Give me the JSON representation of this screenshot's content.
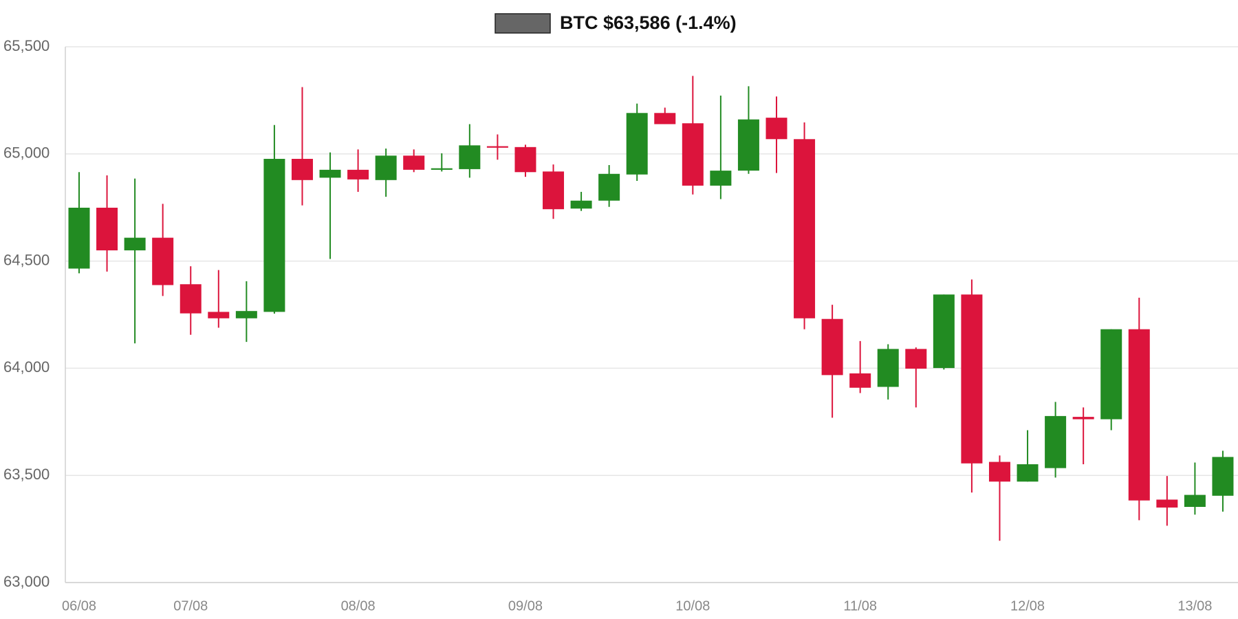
{
  "chart_data": {
    "type": "candlestick",
    "categories": [
      "06/08",
      null,
      null,
      null,
      "07/08",
      null,
      null,
      null,
      null,
      null,
      "08/08",
      null,
      null,
      null,
      null,
      null,
      "09/08",
      null,
      null,
      null,
      null,
      null,
      "10/08",
      null,
      null,
      null,
      null,
      null,
      "11/08",
      null,
      null,
      null,
      null,
      null,
      "12/08",
      null,
      null,
      null,
      null,
      null,
      "13/08",
      null
    ],
    "series": [
      {
        "name": "BTC $63,586 (-1.4%)",
        "color": "#666666",
        "open": [
          64465,
          64749,
          64550,
          64609,
          64392,
          64263,
          64233,
          64263,
          64977,
          64889,
          64926,
          64878,
          64992,
          64926,
          64929,
          65036,
          65032,
          64918,
          64745,
          64782,
          64904,
          65191,
          65143,
          64852,
          64922,
          65169,
          65069,
          64230,
          63976,
          63913,
          64090,
          64001,
          64344,
          63563,
          63471,
          63534,
          63773,
          63762,
          64182,
          63387,
          63353,
          63405
        ],
        "high": [
          64915,
          64900,
          64885,
          64767,
          64476,
          64458,
          64406,
          65135,
          65312,
          65007,
          65021,
          65025,
          65021,
          65003,
          65139,
          65091,
          65043,
          64951,
          64823,
          64948,
          65235,
          65216,
          65364,
          65272,
          65316,
          65268,
          65147,
          64296,
          64127,
          64112,
          64097,
          64344,
          64414,
          63593,
          63711,
          63843,
          63817,
          64182,
          64329,
          63497,
          63560,
          63615
        ],
        "low": [
          64443,
          64451,
          64116,
          64337,
          64156,
          64189,
          64123,
          64255,
          64760,
          64510,
          64823,
          64800,
          64915,
          64918,
          64889,
          64973,
          64893,
          64697,
          64734,
          64753,
          64874,
          65139,
          64811,
          64789,
          64907,
          64911,
          64182,
          63769,
          63884,
          63854,
          63817,
          63994,
          63420,
          63195,
          63471,
          63490,
          63552,
          63711,
          63291,
          63265,
          63317,
          63331
        ],
        "close": [
          64749,
          64550,
          64609,
          64388,
          64256,
          64233,
          64267,
          64977,
          64878,
          64926,
          64881,
          64992,
          64926,
          64933,
          65040,
          65029,
          64915,
          64742,
          64782,
          64907,
          65191,
          65139,
          64852,
          64922,
          65161,
          65069,
          64233,
          63968,
          63909,
          64090,
          63998,
          64344,
          63556,
          63471,
          63552,
          63777,
          63762,
          64182,
          63383,
          63350,
          63409,
          63586
        ]
      }
    ],
    "up_color": "#228b22",
    "down_color": "#dc143c",
    "ylim": [
      63000,
      65500
    ],
    "yticks": [
      {
        "value": 63000,
        "label": "63,000"
      },
      {
        "value": 63500,
        "label": "63,500"
      },
      {
        "value": 64000,
        "label": "64,000"
      },
      {
        "value": 64500,
        "label": "64,500"
      },
      {
        "value": 65000,
        "label": "65,000"
      },
      {
        "value": 65500,
        "label": "65,500"
      }
    ],
    "grid": true
  }
}
